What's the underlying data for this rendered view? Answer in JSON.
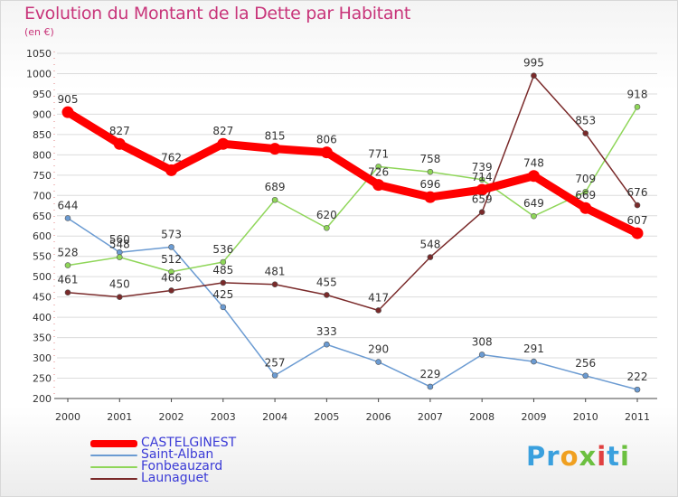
{
  "chart_data": {
    "type": "line",
    "title": "Evolution du Montant de la Dette par Habitant",
    "subtitle": "(en €)",
    "categories": [
      "2000",
      "2001",
      "2002",
      "2003",
      "2004",
      "2005",
      "2006",
      "2007",
      "2008",
      "2009",
      "2010",
      "2011"
    ],
    "ylim": [
      200,
      1050
    ],
    "yticks": [
      200,
      250,
      300,
      350,
      400,
      450,
      500,
      550,
      600,
      650,
      700,
      750,
      800,
      850,
      900,
      950,
      1000,
      1050
    ],
    "grid": "horizontal",
    "legend_position": "bottom-left",
    "series": [
      {
        "name": "CASTELGINEST",
        "color": "#ff0000",
        "values": [
          905,
          827,
          762,
          827,
          815,
          806,
          726,
          696,
          714,
          748,
          669,
          607
        ]
      },
      {
        "name": "Saint-Alban",
        "color": "#6b9bd2",
        "values": [
          644,
          560,
          573,
          425,
          257,
          333,
          290,
          229,
          308,
          291,
          256,
          222
        ]
      },
      {
        "name": "Fonbeauzard",
        "color": "#8fd659",
        "values": [
          528,
          548,
          512,
          536,
          689,
          620,
          771,
          758,
          739,
          649,
          709,
          918
        ]
      },
      {
        "name": "Launaguet",
        "color": "#7a2a2a",
        "values": [
          461,
          450,
          466,
          485,
          481,
          455,
          417,
          548,
          659,
          995,
          853,
          676
        ]
      }
    ]
  },
  "logo": {
    "text": "Proxiti",
    "parts": [
      "Pr",
      "o",
      "x",
      "i",
      "t",
      "i"
    ]
  }
}
